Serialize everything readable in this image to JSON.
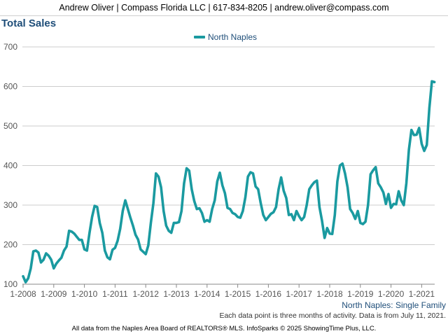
{
  "header": {
    "contact": "Andrew Oliver | Compass Florida LLC | 617-834-8205 | andrew.oliver@compass.com"
  },
  "title": "Total Sales",
  "series_caption": "North Naples: Single Family",
  "footer": {
    "note": "Each data point is three months of activity. Data is from July 11, 2021.",
    "source": "All data from the Naples Area Board of REALTORS® MLS. InfoSparks © 2025 ShowingTime Plus, LLC."
  },
  "colors": {
    "series": "#1a9aa0",
    "grid": "#cccccc",
    "title": "#1f4e79"
  },
  "chart_data": {
    "type": "line",
    "title": "Total Sales",
    "xlabel": "",
    "ylabel": "",
    "ylim": [
      100,
      700
    ],
    "yticks": [
      100,
      200,
      300,
      400,
      500,
      600,
      700
    ],
    "xticks": [
      "1-2008",
      "1-2009",
      "1-2010",
      "1-2011",
      "1-2012",
      "1-2013",
      "1-2014",
      "1-2015",
      "1-2016",
      "1-2017",
      "1-2018",
      "1-2019",
      "1-2020",
      "1-2021"
    ],
    "x_start": "1-2008",
    "x_end": "6-2021",
    "grid": "horizontal",
    "legend": "top-center",
    "series": [
      {
        "name": "North Naples",
        "values": [
          120,
          105,
          115,
          140,
          183,
          185,
          180,
          155,
          162,
          178,
          172,
          162,
          140,
          152,
          160,
          167,
          185,
          195,
          235,
          233,
          228,
          220,
          212,
          212,
          188,
          185,
          230,
          270,
          298,
          295,
          255,
          230,
          185,
          168,
          163,
          187,
          192,
          210,
          240,
          285,
          312,
          290,
          268,
          248,
          225,
          213,
          188,
          182,
          176,
          198,
          255,
          305,
          380,
          372,
          345,
          285,
          248,
          235,
          230,
          255,
          255,
          257,
          285,
          355,
          393,
          387,
          340,
          310,
          290,
          292,
          280,
          258,
          262,
          258,
          290,
          312,
          360,
          382,
          350,
          330,
          293,
          290,
          280,
          277,
          270,
          268,
          285,
          320,
          372,
          383,
          380,
          347,
          340,
          305,
          275,
          262,
          270,
          278,
          282,
          295,
          340,
          370,
          336,
          318,
          275,
          277,
          262,
          285,
          272,
          262,
          270,
          300,
          340,
          350,
          358,
          362,
          295,
          260,
          217,
          242,
          228,
          227,
          275,
          360,
          400,
          405,
          380,
          345,
          290,
          280,
          265,
          285,
          255,
          252,
          258,
          300,
          378,
          388,
          396,
          355,
          345,
          332,
          303,
          328,
          293,
          303,
          302,
          335,
          312,
          300,
          355,
          440,
          490,
          477,
          478,
          495,
          455,
          437,
          452,
          545,
          613,
          611
        ]
      }
    ]
  }
}
